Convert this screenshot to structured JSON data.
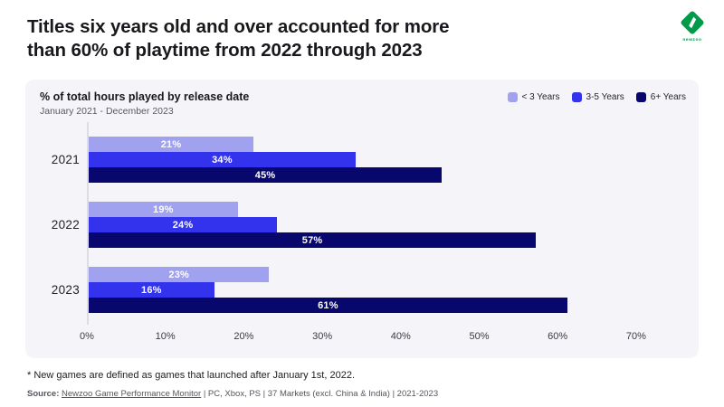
{
  "header": {
    "title_line1": "Titles six years old and over accounted for more",
    "title_line2": "than 60% of playtime from 2022 through 2023"
  },
  "logo": {
    "text": "newzoo",
    "brand_color": "#009a49"
  },
  "panel": {
    "title": "% of total hours played by release date",
    "subtitle": "January 2021 - December 2023",
    "background": "#f4f4f9"
  },
  "chart_data": {
    "type": "bar",
    "orientation": "horizontal",
    "title": "% of total hours played by release date",
    "subtitle": "January 2021 - December 2023",
    "categories": [
      "2021",
      "2022",
      "2023"
    ],
    "series": [
      {
        "name": "< 3 Years",
        "color": "#a0a1ef",
        "values": [
          21,
          19,
          23
        ]
      },
      {
        "name": "3-5 Years",
        "color": "#3333ee",
        "values": [
          34,
          24,
          16
        ]
      },
      {
        "name": "6+ Years",
        "color": "#07076e",
        "values": [
          45,
          57,
          61
        ]
      }
    ],
    "value_suffix": "%",
    "x_ticks": [
      "0%",
      "10%",
      "20%",
      "30%",
      "40%",
      "50%",
      "60%",
      "70%"
    ],
    "xlim": [
      0,
      78
    ],
    "grid": false,
    "legend_position": "top-right"
  },
  "footnote": {
    "text": "* New games are defined as games that launched after January 1st, 2022."
  },
  "source": {
    "prefix": "Source:",
    "link_text": "Newzoo Game Performance Monitor",
    "suffix": " | PC, Xbox, PS | 37 Markets (excl. China & India) | 2021-2023"
  }
}
